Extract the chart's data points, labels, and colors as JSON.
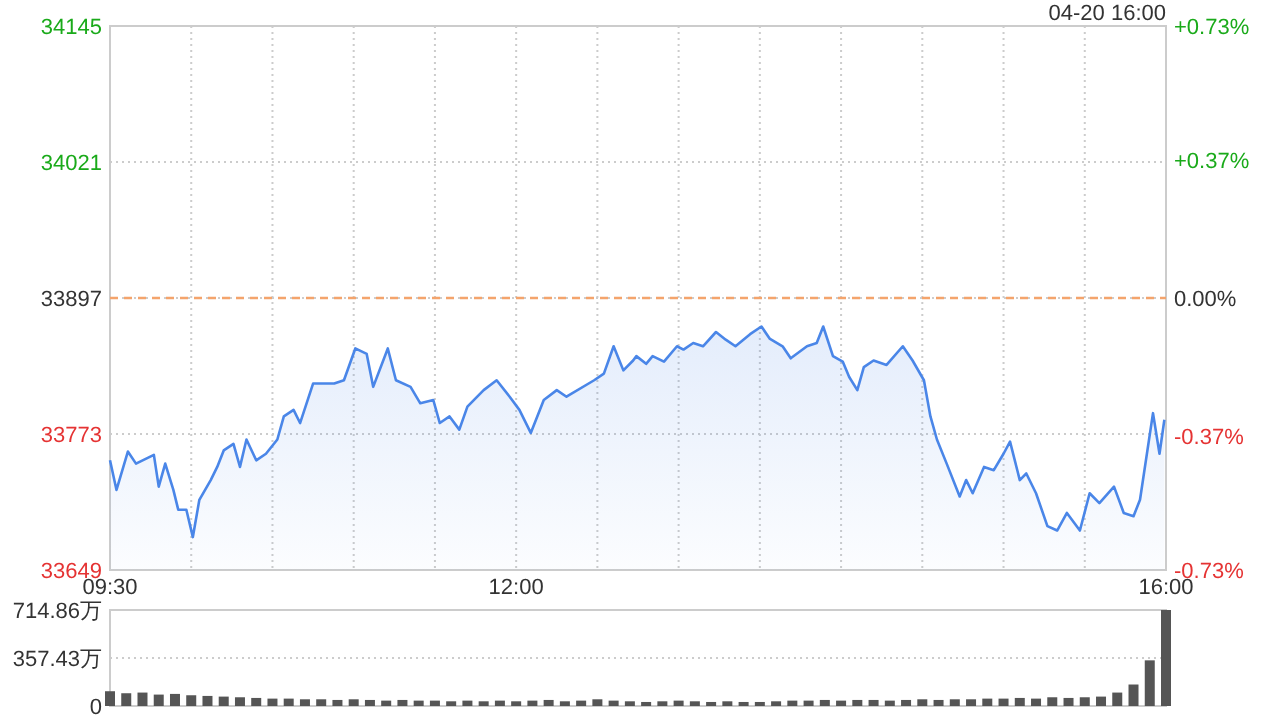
{
  "chart_data": [
    {
      "type": "area",
      "annotations": [
        "04-20 16:00"
      ],
      "xlim": [
        9.5,
        16
      ],
      "xticks": [
        {
          "value": 9.5,
          "label": "09:30"
        },
        {
          "value": 10,
          "label": null
        },
        {
          "value": 10.5,
          "label": null
        },
        {
          "value": 11,
          "label": null
        },
        {
          "value": 11.5,
          "label": null
        },
        {
          "value": 12,
          "label": "12:00"
        },
        {
          "value": 12.5,
          "label": null
        },
        {
          "value": 13,
          "label": null
        },
        {
          "value": 13.5,
          "label": null
        },
        {
          "value": 14,
          "label": null
        },
        {
          "value": 14.5,
          "label": null
        },
        {
          "value": 15,
          "label": null
        },
        {
          "value": 15.5,
          "label": null
        },
        {
          "value": 16,
          "label": "16:00"
        }
      ],
      "ylim": [
        33649,
        34145
      ],
      "yticks": [
        33649,
        33773,
        33897,
        34021,
        34145
      ],
      "y2lim": [
        -0.73,
        0.73
      ],
      "y2ticks": [
        {
          "value": -0.73,
          "label": "-0.73%"
        },
        {
          "value": -0.37,
          "label": "-0.37%"
        },
        {
          "value": 0,
          "label": "0.00%"
        },
        {
          "value": 0.37,
          "label": "+0.37%"
        },
        {
          "value": 0.73,
          "label": "+0.73%"
        }
      ],
      "grid": true,
      "line_style": "solid",
      "ref_lines": [
        {
          "axis": "y",
          "value": 33897,
          "color": "#f4a46c",
          "line_style": "dashed"
        }
      ],
      "series": [
        {
          "color": "#4a86e8",
          "x": [
            9.5,
            9.54,
            9.61,
            9.66,
            9.77,
            9.8,
            9.84,
            9.89,
            9.92,
            9.97,
            10.01,
            10.05,
            10.12,
            10.16,
            10.2,
            10.26,
            10.3,
            10.34,
            10.4,
            10.46,
            10.53,
            10.57,
            10.63,
            10.67,
            10.75,
            10.88,
            10.94,
            11.01,
            11.08,
            11.12,
            11.21,
            11.26,
            11.35,
            11.41,
            11.49,
            11.53,
            11.59,
            11.65,
            11.7,
            11.8,
            11.88,
            11.96,
            12.02,
            12.09,
            12.17,
            12.25,
            12.31,
            12.48,
            12.54,
            12.6,
            12.66,
            12.72,
            12.74,
            12.8,
            12.84,
            12.91,
            12.99,
            13.03,
            13.09,
            13.15,
            13.23,
            13.29,
            13.35,
            13.44,
            13.51,
            13.56,
            13.64,
            13.69,
            13.79,
            13.85,
            13.89,
            13.95,
            14.01,
            14.05,
            14.1,
            14.14,
            14.2,
            14.28,
            14.38,
            14.44,
            14.51,
            14.55,
            14.59,
            14.65,
            14.73,
            14.77,
            14.81,
            14.88,
            14.94,
            15,
            15.04,
            15.1,
            15.14,
            15.2,
            15.27,
            15.33,
            15.39,
            15.47,
            15.53,
            15.59,
            15.68,
            15.74,
            15.8,
            15.84,
            15.92,
            15.96,
            15.99
          ],
          "values": [
            33749,
            33722,
            33757,
            33746,
            33754,
            33725,
            33746,
            33722,
            33704,
            33704,
            33679,
            33713,
            33731,
            33743,
            33758,
            33764,
            33743,
            33768,
            33749,
            33755,
            33768,
            33789,
            33795,
            33783,
            33819,
            33819,
            33822,
            33851,
            33846,
            33816,
            33851,
            33822,
            33816,
            33801,
            33804,
            33783,
            33789,
            33777,
            33798,
            33813,
            33822,
            33807,
            33795,
            33774,
            33804,
            33813,
            33807,
            33822,
            33828,
            33853,
            33831,
            33840,
            33844,
            33837,
            33844,
            33839,
            33853,
            33850,
            33856,
            33853,
            33866,
            33859,
            33853,
            33864,
            33871,
            33860,
            33853,
            33842,
            33853,
            33856,
            33871,
            33844,
            33839,
            33825,
            33813,
            33834,
            33840,
            33836,
            33853,
            33840,
            33822,
            33789,
            33768,
            33746,
            33716,
            33731,
            33719,
            33743,
            33740,
            33755,
            33766,
            33731,
            33737,
            33719,
            33689,
            33685,
            33701,
            33685,
            33719,
            33710,
            33725,
            33701,
            33698,
            33713,
            33792,
            33755,
            33786
          ]
        }
      ]
    },
    {
      "type": "bar",
      "tick_labels": "y",
      "grid": "y",
      "xlim": [
        9.5,
        16
      ],
      "ylim": [
        0,
        714.86
      ],
      "yticks": [
        0,
        {
          "value": 357.43,
          "label": "357.43万"
        },
        {
          "value": 714.86,
          "label": "714.86万"
        }
      ],
      "series": [
        {
          "color": "#555555",
          "x": [
            9.5,
            9.6,
            9.7,
            9.8,
            9.9,
            10,
            10.1,
            10.2,
            10.3,
            10.4,
            10.5,
            10.6,
            10.7,
            10.8,
            10.9,
            11,
            11.1,
            11.2,
            11.3,
            11.4,
            11.5,
            11.6,
            11.7,
            11.8,
            11.9,
            12,
            12.1,
            12.2,
            12.3,
            12.4,
            12.5,
            12.6,
            12.7,
            12.8,
            12.9,
            13,
            13.1,
            13.2,
            13.3,
            13.4,
            13.5,
            13.6,
            13.7,
            13.8,
            13.9,
            14,
            14.1,
            14.2,
            14.3,
            14.4,
            14.5,
            14.6,
            14.7,
            14.8,
            14.9,
            15,
            15.1,
            15.2,
            15.3,
            15.4,
            15.5,
            15.6,
            15.7,
            15.8,
            15.9,
            16
          ],
          "values": [
            110,
            95,
            100,
            85,
            90,
            80,
            75,
            70,
            65,
            60,
            55,
            55,
            50,
            50,
            45,
            50,
            45,
            40,
            45,
            40,
            40,
            35,
            40,
            35,
            40,
            35,
            40,
            45,
            35,
            40,
            50,
            40,
            35,
            30,
            35,
            40,
            35,
            30,
            35,
            30,
            30,
            35,
            40,
            40,
            45,
            40,
            45,
            45,
            40,
            45,
            50,
            45,
            50,
            50,
            55,
            55,
            60,
            55,
            65,
            60,
            65,
            70,
            100,
            160,
            340,
            714.86
          ]
        }
      ]
    }
  ]
}
